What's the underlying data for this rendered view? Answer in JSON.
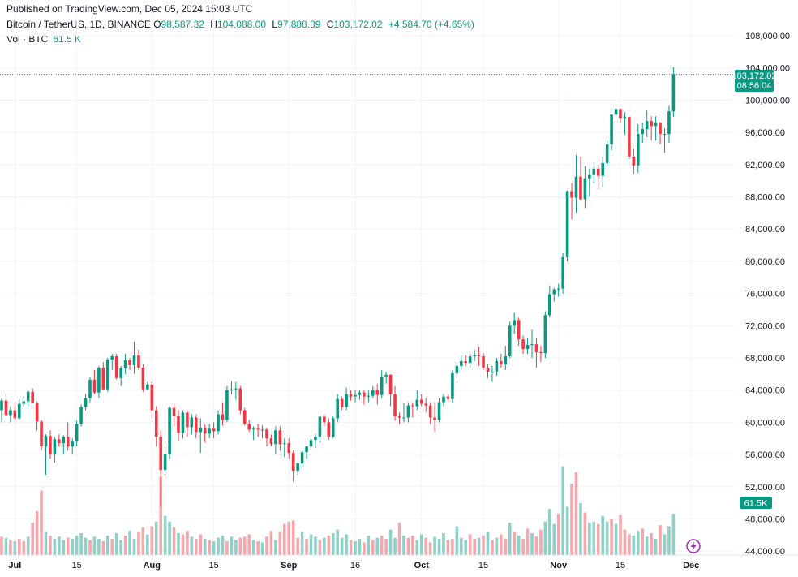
{
  "header": {
    "published": "Published on TradingView.com, Dec 05, 2024 15:03 UTC",
    "symbol": "Bitcoin / TetherUS, 1D, BINANCE",
    "o_label": "O",
    "o_value": "98,587.32",
    "h_label": "H",
    "h_value": "104,088.00",
    "l_label": "L",
    "l_value": "97,888.89",
    "c_label": "C",
    "c_value": "103,172.02",
    "change": "+4,584.70 (+4.65%)",
    "vol_label": "Vol · BTC",
    "vol_value": "61.5 K"
  },
  "price_tag": {
    "price": "103,172.02",
    "countdown": "08:56:04"
  },
  "volume_tag": "61.5K",
  "colors": {
    "up": "#089981",
    "down": "#f23645",
    "vol_up": "#8fd0c7",
    "vol_down": "#f4a8ae",
    "grid": "#f0f3fa"
  },
  "chart_data": {
    "type": "candlestick",
    "title": "Bitcoin / TetherUS, 1D, BINANCE",
    "ylim": [
      44000,
      109500
    ],
    "y_ticks": [
      "108,000.00",
      "104,000.00",
      "100,000.00",
      "96,000.00",
      "92,000.00",
      "88,000.00",
      "84,000.00",
      "80,000.00",
      "76,000.00",
      "72,000.00",
      "68,000.00",
      "64,000.00",
      "60,000.00",
      "56,000.00",
      "52,000.00",
      "48,000.00",
      "44,000.00"
    ],
    "x_ticks": [
      {
        "label": "Jul",
        "index": 3,
        "bold": true
      },
      {
        "label": "15",
        "index": 17,
        "bold": false
      },
      {
        "label": "Aug",
        "index": 34,
        "bold": true
      },
      {
        "label": "15",
        "index": 48,
        "bold": false
      },
      {
        "label": "Sep",
        "index": 65,
        "bold": true
      },
      {
        "label": "16",
        "index": 80,
        "bold": false
      },
      {
        "label": "Oct",
        "index": 95,
        "bold": true
      },
      {
        "label": "15",
        "index": 109,
        "bold": false
      },
      {
        "label": "Nov",
        "index": 126,
        "bold": true
      },
      {
        "label": "15",
        "index": 140,
        "bold": false
      },
      {
        "label": "Dec",
        "index": 156,
        "bold": true
      }
    ],
    "candles": [
      [
        61500,
        63000,
        60000,
        62700
      ],
      [
        62700,
        63500,
        60300,
        60900
      ],
      [
        60900,
        62000,
        60000,
        61500
      ],
      [
        61500,
        62500,
        60300,
        60500
      ],
      [
        60500,
        62800,
        60300,
        62300
      ],
      [
        62300,
        63200,
        62000,
        62600
      ],
      [
        62600,
        64000,
        62000,
        63800
      ],
      [
        63800,
        64200,
        62500,
        62400
      ],
      [
        62400,
        62600,
        59000,
        60100
      ],
      [
        60100,
        60300,
        56500,
        57000
      ],
      [
        57000,
        58500,
        53500,
        58300
      ],
      [
        58300,
        59000,
        55500,
        56000
      ],
      [
        56000,
        58200,
        55000,
        57900
      ],
      [
        57900,
        58500,
        57000,
        57400
      ],
      [
        57400,
        58400,
        56000,
        58200
      ],
      [
        58200,
        60000,
        56500,
        57000
      ],
      [
        57000,
        58000,
        56000,
        57600
      ],
      [
        57600,
        60200,
        57000,
        59800
      ],
      [
        59800,
        62200,
        59500,
        61900
      ],
      [
        61900,
        63500,
        61500,
        63000
      ],
      [
        63000,
        65600,
        62500,
        65300
      ],
      [
        65300,
        66500,
        63500,
        63700
      ],
      [
        63700,
        67000,
        63000,
        66800
      ],
      [
        66800,
        67500,
        64000,
        64100
      ],
      [
        64100,
        68000,
        63800,
        67800
      ],
      [
        67800,
        68500,
        66500,
        68200
      ],
      [
        68200,
        68500,
        65300,
        65500
      ],
      [
        65500,
        67000,
        64500,
        66700
      ],
      [
        66700,
        68500,
        66000,
        67700
      ],
      [
        67700,
        68000,
        66500,
        67100
      ],
      [
        67100,
        70000,
        66000,
        68300
      ],
      [
        68300,
        69000,
        66500,
        66800
      ],
      [
        66800,
        67200,
        63800,
        64100
      ],
      [
        64100,
        65000,
        64000,
        64700
      ],
      [
        64700,
        65000,
        60500,
        61500
      ],
      [
        61500,
        62000,
        57000,
        58200
      ],
      [
        58200,
        59000,
        49500,
        54100
      ],
      [
        54100,
        57000,
        53500,
        56000
      ],
      [
        56000,
        62000,
        55500,
        61800
      ],
      [
        61800,
        62300,
        59500,
        60800
      ],
      [
        60800,
        61500,
        57600,
        58700
      ],
      [
        58700,
        61500,
        58000,
        61200
      ],
      [
        61200,
        61500,
        58200,
        59400
      ],
      [
        59400,
        61000,
        58500,
        60600
      ],
      [
        60600,
        61000,
        58000,
        58800
      ],
      [
        58800,
        60500,
        56200,
        59300
      ],
      [
        59300,
        59700,
        57500,
        58600
      ],
      [
        58600,
        59800,
        58000,
        59200
      ],
      [
        59200,
        60000,
        58000,
        58900
      ],
      [
        58900,
        61500,
        58500,
        61000
      ],
      [
        61000,
        62500,
        59600,
        60300
      ],
      [
        60300,
        64500,
        60000,
        64000
      ],
      [
        64000,
        65100,
        63500,
        64100
      ],
      [
        64100,
        65000,
        62800,
        64200
      ],
      [
        64200,
        64500,
        61000,
        61500
      ],
      [
        61500,
        61800,
        59600,
        59800
      ],
      [
        59800,
        60300,
        58800,
        59100
      ],
      [
        59100,
        59500,
        57800,
        59200
      ],
      [
        59200,
        59800,
        58200,
        59100
      ],
      [
        59100,
        59600,
        58000,
        59100
      ],
      [
        59100,
        59300,
        57000,
        58000
      ],
      [
        58000,
        58500,
        57000,
        57300
      ],
      [
        57300,
        59500,
        56000,
        59000
      ],
      [
        59000,
        59500,
        56500,
        57300
      ],
      [
        57300,
        58000,
        55700,
        57400
      ],
      [
        57400,
        58000,
        55500,
        56200
      ],
      [
        56200,
        56500,
        52600,
        54000
      ],
      [
        54000,
        55000,
        53500,
        54900
      ],
      [
        54900,
        56500,
        54500,
        56300
      ],
      [
        56300,
        57000,
        55500,
        57000
      ],
      [
        57000,
        58000,
        56500,
        57800
      ],
      [
        57800,
        58500,
        56800,
        58200
      ],
      [
        58200,
        60800,
        57500,
        60700
      ],
      [
        60700,
        61000,
        59500,
        60000
      ],
      [
        60000,
        60500,
        57800,
        58200
      ],
      [
        58200,
        60800,
        58000,
        60500
      ],
      [
        60500,
        63500,
        60000,
        62900
      ],
      [
        62900,
        63200,
        61500,
        61900
      ],
      [
        61900,
        64300,
        61500,
        63500
      ],
      [
        63500,
        64000,
        62700,
        63200
      ],
      [
        63200,
        64000,
        62500,
        63400
      ],
      [
        63400,
        64000,
        62800,
        63700
      ],
      [
        63700,
        64000,
        62200,
        63200
      ],
      [
        63200,
        64000,
        62500,
        63300
      ],
      [
        63300,
        64500,
        63000,
        64000
      ],
      [
        64000,
        64800,
        62200,
        63400
      ],
      [
        63400,
        66500,
        63000,
        65700
      ],
      [
        65700,
        66200,
        64800,
        65900
      ],
      [
        65900,
        66000,
        62000,
        63500
      ],
      [
        63500,
        64500,
        60200,
        60800
      ],
      [
        60800,
        61200,
        59800,
        60600
      ],
      [
        60600,
        62400,
        60000,
        60600
      ],
      [
        60600,
        62500,
        60000,
        62100
      ],
      [
        62100,
        62500,
        60600,
        62000
      ],
      [
        62000,
        64000,
        61500,
        62800
      ],
      [
        62800,
        63500,
        62000,
        62300
      ],
      [
        62300,
        63000,
        61300,
        62100
      ],
      [
        62100,
        62500,
        59800,
        60600
      ],
      [
        60600,
        62500,
        58800,
        60300
      ],
      [
        60300,
        63000,
        60000,
        62500
      ],
      [
        62500,
        63500,
        62000,
        63200
      ],
      [
        63200,
        63500,
        62600,
        62900
      ],
      [
        62900,
        66500,
        62500,
        66100
      ],
      [
        66100,
        67500,
        65500,
        67000
      ],
      [
        67000,
        68300,
        66500,
        67600
      ],
      [
        67600,
        68300,
        67000,
        67400
      ],
      [
        67400,
        68500,
        66800,
        68200
      ],
      [
        68200,
        69000,
        67600,
        68300
      ],
      [
        68300,
        69400,
        67000,
        68200
      ],
      [
        68200,
        68600,
        66500,
        66800
      ],
      [
        66800,
        67200,
        65500,
        66300
      ],
      [
        66300,
        67000,
        65000,
        66300
      ],
      [
        66300,
        68000,
        65800,
        67600
      ],
      [
        67600,
        68500,
        66800,
        67200
      ],
      [
        67200,
        69500,
        66500,
        68200
      ],
      [
        68200,
        72500,
        68000,
        72000
      ],
      [
        72000,
        73600,
        71000,
        72700
      ],
      [
        72700,
        73000,
        69500,
        70300
      ],
      [
        70300,
        70800,
        68500,
        69100
      ],
      [
        69100,
        70500,
        68500,
        69600
      ],
      [
        69600,
        71500,
        68000,
        69700
      ],
      [
        69700,
        70500,
        66800,
        68700
      ],
      [
        68700,
        69500,
        67500,
        68600
      ],
      [
        68600,
        73800,
        68000,
        73300
      ],
      [
        73300,
        77000,
        73000,
        75900
      ],
      [
        75900,
        76700,
        75000,
        76500
      ],
      [
        76500,
        77200,
        75600,
        76600
      ],
      [
        76600,
        81000,
        76000,
        80500
      ],
      [
        80500,
        88800,
        80000,
        88700
      ],
      [
        88700,
        89700,
        85200,
        87900
      ],
      [
        87900,
        93200,
        86000,
        90500
      ],
      [
        90500,
        93000,
        87500,
        87700
      ],
      [
        87700,
        91800,
        86600,
        90300
      ],
      [
        90300,
        91500,
        88000,
        90700
      ],
      [
        90700,
        91800,
        89700,
        91500
      ],
      [
        91500,
        92000,
        89000,
        90600
      ],
      [
        90600,
        93000,
        89200,
        92200
      ],
      [
        92200,
        95000,
        91800,
        94500
      ],
      [
        94500,
        98000,
        93800,
        98200
      ],
      [
        98200,
        99500,
        97200,
        98900
      ],
      [
        98900,
        99000,
        97200,
        97700
      ],
      [
        97700,
        98500,
        95700,
        97900
      ],
      [
        97900,
        98000,
        92700,
        93000
      ],
      [
        93000,
        94000,
        90800,
        91900
      ],
      [
        91900,
        97000,
        91000,
        95800
      ],
      [
        95800,
        97200,
        94700,
        96400
      ],
      [
        96400,
        98700,
        95400,
        97400
      ],
      [
        97400,
        98000,
        95000,
        96800
      ],
      [
        96800,
        98000,
        95000,
        97200
      ],
      [
        97200,
        97300,
        94500,
        95800
      ],
      [
        95800,
        96500,
        93500,
        95800
      ],
      [
        95800,
        99300,
        94700,
        98600
      ],
      [
        98600,
        104100,
        97900,
        103200
      ]
    ],
    "volumes": [
      [
        16,
        0
      ],
      [
        15,
        1
      ],
      [
        13,
        0
      ],
      [
        12,
        1
      ],
      [
        14,
        0
      ],
      [
        12,
        0
      ],
      [
        16,
        1
      ],
      [
        28,
        0
      ],
      [
        38,
        0
      ],
      [
        56,
        0
      ],
      [
        20,
        1
      ],
      [
        17,
        0
      ],
      [
        14,
        1
      ],
      [
        16,
        1
      ],
      [
        13,
        1
      ],
      [
        15,
        0
      ],
      [
        14,
        1
      ],
      [
        17,
        1
      ],
      [
        19,
        1
      ],
      [
        15,
        1
      ],
      [
        13,
        0
      ],
      [
        16,
        1
      ],
      [
        14,
        1
      ],
      [
        12,
        0
      ],
      [
        17,
        1
      ],
      [
        14,
        0
      ],
      [
        19,
        1
      ],
      [
        13,
        1
      ],
      [
        17,
        0
      ],
      [
        21,
        1
      ],
      [
        14,
        1
      ],
      [
        20,
        0
      ],
      [
        24,
        0
      ],
      [
        18,
        1
      ],
      [
        25,
        0
      ],
      [
        29,
        1
      ],
      [
        68,
        0
      ],
      [
        34,
        1
      ],
      [
        29,
        1
      ],
      [
        24,
        0
      ],
      [
        19,
        1
      ],
      [
        18,
        0
      ],
      [
        21,
        0
      ],
      [
        16,
        1
      ],
      [
        14,
        0
      ],
      [
        18,
        0
      ],
      [
        14,
        1
      ],
      [
        13,
        0
      ],
      [
        12,
        1
      ],
      [
        15,
        1
      ],
      [
        17,
        1
      ],
      [
        12,
        0
      ],
      [
        16,
        1
      ],
      [
        13,
        1
      ],
      [
        15,
        0
      ],
      [
        16,
        0
      ],
      [
        18,
        0
      ],
      [
        13,
        1
      ],
      [
        12,
        0
      ],
      [
        11,
        1
      ],
      [
        16,
        0
      ],
      [
        21,
        0
      ],
      [
        13,
        1
      ],
      [
        20,
        0
      ],
      [
        27,
        0
      ],
      [
        29,
        0
      ],
      [
        30,
        0
      ],
      [
        15,
        0
      ],
      [
        20,
        1
      ],
      [
        14,
        0
      ],
      [
        18,
        1
      ],
      [
        16,
        1
      ],
      [
        13,
        0
      ],
      [
        15,
        1
      ],
      [
        17,
        0
      ],
      [
        19,
        1
      ],
      [
        22,
        1
      ],
      [
        15,
        1
      ],
      [
        18,
        1
      ],
      [
        13,
        0
      ],
      [
        12,
        1
      ],
      [
        14,
        1
      ],
      [
        11,
        0
      ],
      [
        17,
        1
      ],
      [
        13,
        0
      ],
      [
        15,
        1
      ],
      [
        17,
        0
      ],
      [
        14,
        0
      ],
      [
        22,
        1
      ],
      [
        15,
        1
      ],
      [
        28,
        0
      ],
      [
        17,
        1
      ],
      [
        15,
        0
      ],
      [
        17,
        0
      ],
      [
        13,
        1
      ],
      [
        18,
        1
      ],
      [
        15,
        0
      ],
      [
        11,
        0
      ],
      [
        16,
        1
      ],
      [
        14,
        1
      ],
      [
        19,
        1
      ],
      [
        13,
        0
      ],
      [
        14,
        0
      ],
      [
        25,
        1
      ],
      [
        15,
        1
      ],
      [
        13,
        1
      ],
      [
        18,
        0
      ],
      [
        14,
        0
      ],
      [
        15,
        1
      ],
      [
        17,
        0
      ],
      [
        20,
        1
      ],
      [
        13,
        0
      ],
      [
        15,
        1
      ],
      [
        18,
        0
      ],
      [
        14,
        0
      ],
      [
        28,
        1
      ],
      [
        20,
        0
      ],
      [
        17,
        1
      ],
      [
        14,
        0
      ],
      [
        23,
        0
      ],
      [
        19,
        1
      ],
      [
        16,
        0
      ],
      [
        22,
        0
      ],
      [
        29,
        1
      ],
      [
        40,
        1
      ],
      [
        27,
        1
      ],
      [
        36,
        0
      ],
      [
        77,
        1
      ],
      [
        42,
        1
      ],
      [
        62,
        0
      ],
      [
        72,
        0
      ],
      [
        45,
        1
      ],
      [
        37,
        0
      ],
      [
        28,
        1
      ],
      [
        29,
        1
      ],
      [
        27,
        0
      ],
      [
        34,
        1
      ],
      [
        29,
        1
      ],
      [
        31,
        0
      ],
      [
        27,
        1
      ],
      [
        35,
        0
      ],
      [
        22,
        0
      ],
      [
        18,
        0
      ],
      [
        17,
        1
      ],
      [
        21,
        1
      ],
      [
        23,
        0
      ],
      [
        16,
        1
      ],
      [
        19,
        0
      ],
      [
        14,
        1
      ],
      [
        26,
        0
      ],
      [
        18,
        1
      ],
      [
        25,
        1
      ],
      [
        36,
        1
      ]
    ]
  }
}
